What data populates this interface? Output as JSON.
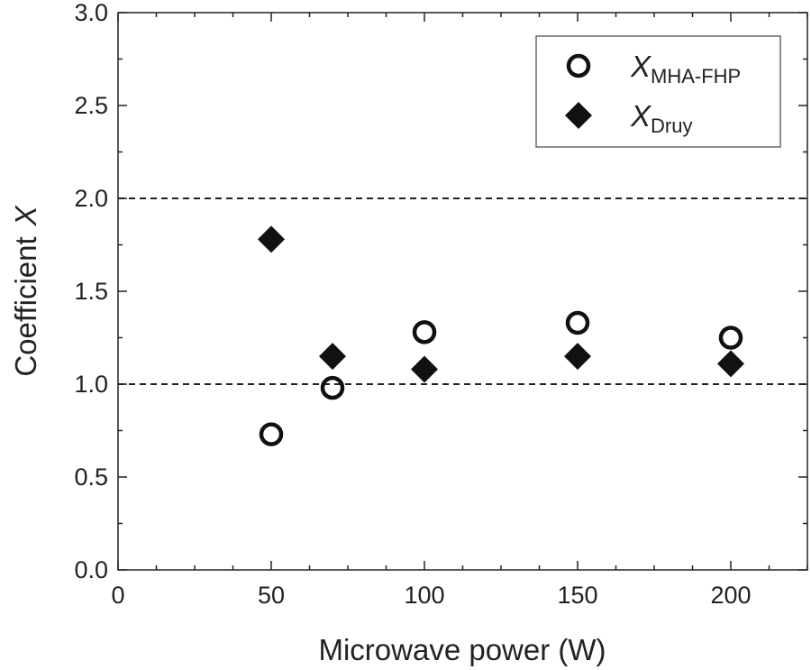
{
  "chart_data": {
    "type": "scatter",
    "xlabel": "Microwave power (W)",
    "ylabel": {
      "text": "Coefficient",
      "variable": "X"
    },
    "xlim": [
      0,
      225
    ],
    "ylim": [
      0,
      3.0
    ],
    "x_ticks": [
      0,
      50,
      100,
      150,
      200
    ],
    "x_tick_labels": [
      "0",
      "50",
      "100",
      "150",
      "200"
    ],
    "y_ticks": [
      0,
      0.5,
      1.0,
      1.5,
      2.0,
      2.5,
      3.0
    ],
    "y_tick_labels": [
      "0.0",
      "0.5",
      "1.0",
      "1.5",
      "2.0",
      "2.5",
      "3.0"
    ],
    "reference_lines": [
      1.0,
      2.0
    ],
    "grid": false,
    "legend_position": "top-right",
    "series": [
      {
        "name": "X",
        "subscript": "MHA-FHP",
        "marker": "open-circle",
        "x": [
          50,
          70,
          100,
          150,
          200
        ],
        "y": [
          0.73,
          0.98,
          1.28,
          1.33,
          1.25
        ]
      },
      {
        "name": "X",
        "subscript": "Druy",
        "marker": "filled-diamond",
        "x": [
          50,
          70,
          100,
          150,
          200
        ],
        "y": [
          1.78,
          1.15,
          1.08,
          1.15,
          1.11
        ]
      }
    ],
    "colors": {
      "marker": "#111111",
      "axis": "#222222"
    }
  }
}
